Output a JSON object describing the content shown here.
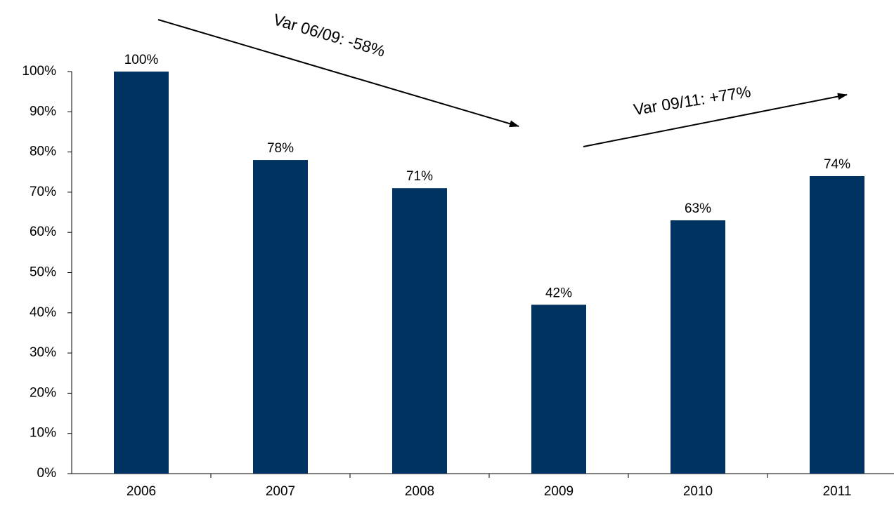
{
  "chart_data": {
    "type": "bar",
    "categories": [
      "2006",
      "2007",
      "2008",
      "2009",
      "2010",
      "2011"
    ],
    "values": [
      100,
      78,
      71,
      42,
      63,
      74
    ],
    "value_labels": [
      "100%",
      "78%",
      "71%",
      "42%",
      "63%",
      "74%"
    ],
    "color": "#003262",
    "ylim": [
      0,
      100
    ],
    "yticks": [
      {
        "value": 0,
        "label": "0%"
      },
      {
        "value": 10,
        "label": "10%"
      },
      {
        "value": 20,
        "label": "20%"
      },
      {
        "value": 30,
        "label": "30%"
      },
      {
        "value": 40,
        "label": "40%"
      },
      {
        "value": 50,
        "label": "50%"
      },
      {
        "value": 60,
        "label": "60%"
      },
      {
        "value": 70,
        "label": "70%"
      },
      {
        "value": 80,
        "label": "80%"
      },
      {
        "value": 90,
        "label": "90%"
      },
      {
        "value": 100,
        "label": "100%"
      }
    ],
    "grid": false,
    "annotations": [
      "Var 06/09: -58%",
      "Var 09/11: +77%"
    ]
  }
}
